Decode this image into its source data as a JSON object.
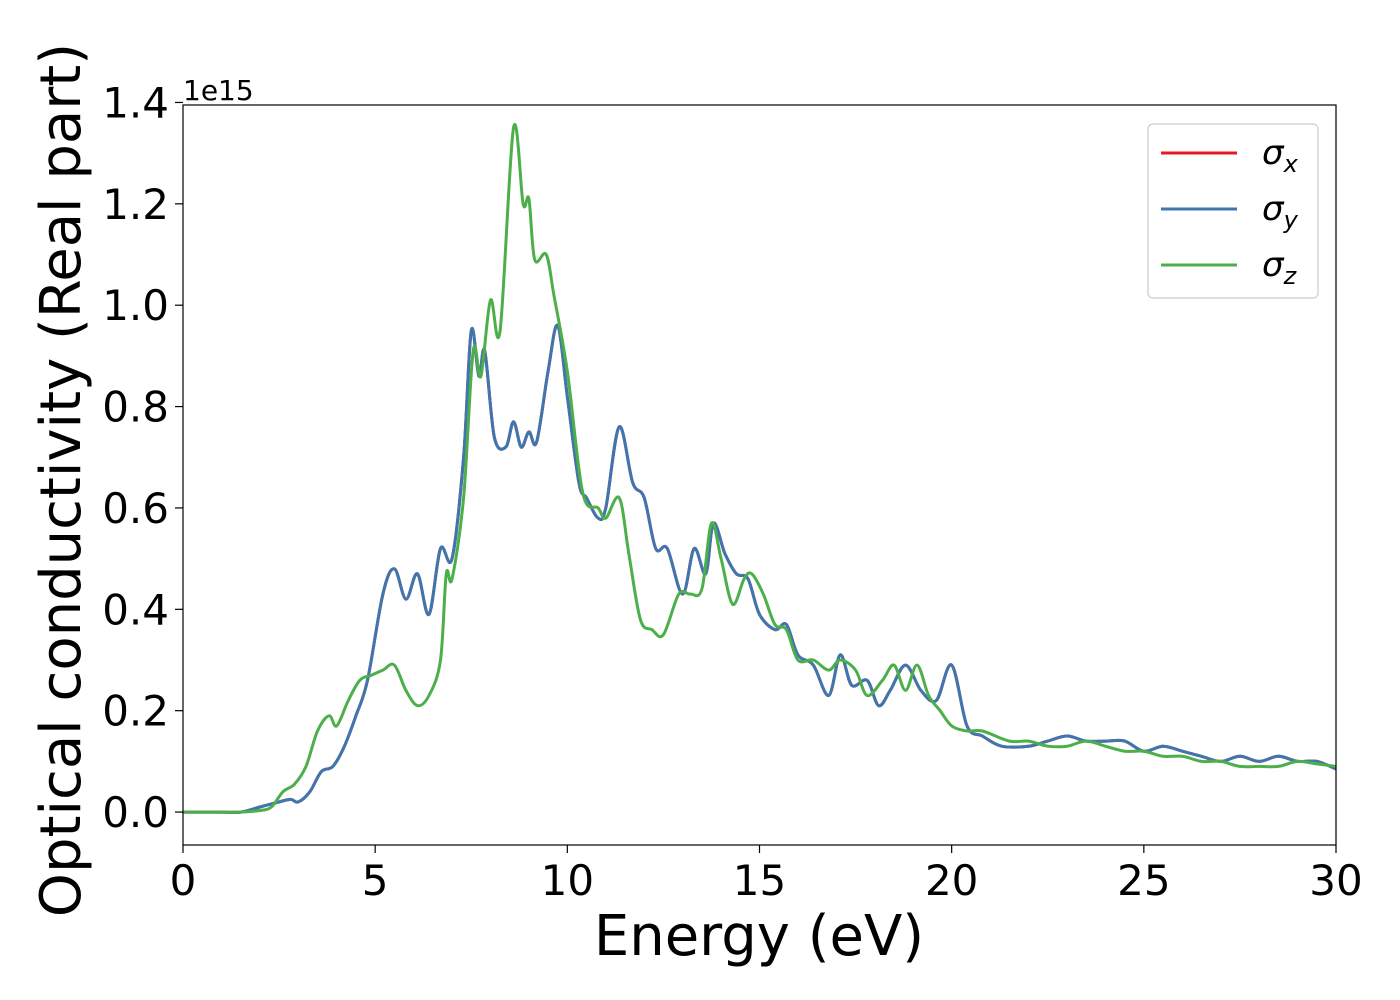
{
  "chart_data": {
    "type": "line",
    "title": "",
    "xlabel": "Energy (eV)",
    "ylabel": "Optical conductivity (Real part)",
    "y_offset_label": "1e15",
    "xlim": [
      0,
      30
    ],
    "ylim": [
      -0.065,
      1.395
    ],
    "x_ticks": [
      0,
      5,
      10,
      15,
      20,
      25,
      30
    ],
    "x_tick_labels": [
      "0",
      "5",
      "10",
      "15",
      "20",
      "25",
      "30"
    ],
    "y_ticks": [
      0.0,
      0.2,
      0.4,
      0.6,
      0.8,
      1.0,
      1.2,
      1.4
    ],
    "y_tick_labels": [
      "0.0",
      "0.2",
      "0.4",
      "0.6",
      "0.8",
      "1.0",
      "1.2",
      "1.4"
    ],
    "grid": false,
    "legend_position": "top-right",
    "series": [
      {
        "name": "σx",
        "name_base": "σ",
        "name_sub": "x",
        "color": "#e41a1c",
        "x": [
          0,
          1,
          1.5,
          2,
          2.5,
          2.8,
          3,
          3.3,
          3.6,
          3.9,
          4.2,
          4.5,
          4.8,
          5.2,
          5.5,
          5.8,
          6.1,
          6.4,
          6.7,
          7,
          7.3,
          7.5,
          7.7,
          7.85,
          8.1,
          8.4,
          8.6,
          8.8,
          9,
          9.2,
          9.5,
          9.75,
          10,
          10.3,
          10.5,
          10.8,
          11,
          11.35,
          11.7,
          12,
          12.3,
          12.6,
          13,
          13.3,
          13.6,
          13.8,
          14.1,
          14.4,
          14.7,
          15,
          15.4,
          15.7,
          16,
          16.4,
          16.8,
          17.1,
          17.4,
          17.8,
          18.1,
          18.4,
          18.8,
          19.2,
          19.6,
          20,
          20.4,
          20.8,
          21.3,
          22,
          22.5,
          23,
          23.5,
          24,
          24.5,
          25,
          25.5,
          26,
          26.5,
          27,
          27.5,
          28,
          28.5,
          29,
          29.5,
          30
        ],
        "values": [
          0,
          0,
          0,
          0.01,
          0.02,
          0.025,
          0.02,
          0.04,
          0.08,
          0.09,
          0.13,
          0.19,
          0.26,
          0.43,
          0.48,
          0.42,
          0.47,
          0.39,
          0.52,
          0.5,
          0.7,
          0.95,
          0.86,
          0.91,
          0.74,
          0.72,
          0.77,
          0.72,
          0.75,
          0.73,
          0.87,
          0.96,
          0.82,
          0.65,
          0.62,
          0.58,
          0.6,
          0.76,
          0.65,
          0.62,
          0.52,
          0.52,
          0.43,
          0.52,
          0.47,
          0.57,
          0.51,
          0.47,
          0.46,
          0.39,
          0.36,
          0.37,
          0.31,
          0.29,
          0.23,
          0.31,
          0.25,
          0.26,
          0.21,
          0.24,
          0.29,
          0.24,
          0.22,
          0.29,
          0.17,
          0.15,
          0.13,
          0.13,
          0.14,
          0.15,
          0.14,
          0.14,
          0.14,
          0.12,
          0.13,
          0.12,
          0.11,
          0.1,
          0.11,
          0.1,
          0.11,
          0.1,
          0.1,
          0.085
        ]
      },
      {
        "name": "σy",
        "name_base": "σ",
        "name_sub": "y",
        "color": "#3e77b0",
        "x": [
          0,
          1,
          1.5,
          2,
          2.5,
          2.8,
          3,
          3.3,
          3.6,
          3.9,
          4.2,
          4.5,
          4.8,
          5.2,
          5.5,
          5.8,
          6.1,
          6.4,
          6.7,
          7,
          7.3,
          7.5,
          7.7,
          7.85,
          8.1,
          8.4,
          8.6,
          8.8,
          9,
          9.2,
          9.5,
          9.75,
          10,
          10.3,
          10.5,
          10.8,
          11,
          11.35,
          11.7,
          12,
          12.3,
          12.6,
          13,
          13.3,
          13.6,
          13.8,
          14.1,
          14.4,
          14.7,
          15,
          15.4,
          15.7,
          16,
          16.4,
          16.8,
          17.1,
          17.4,
          17.8,
          18.1,
          18.4,
          18.8,
          19.2,
          19.6,
          20,
          20.4,
          20.8,
          21.3,
          22,
          22.5,
          23,
          23.5,
          24,
          24.5,
          25,
          25.5,
          26,
          26.5,
          27,
          27.5,
          28,
          28.5,
          29,
          29.5,
          30
        ],
        "values": [
          0,
          0,
          0,
          0.01,
          0.02,
          0.025,
          0.02,
          0.04,
          0.08,
          0.09,
          0.13,
          0.19,
          0.26,
          0.43,
          0.48,
          0.42,
          0.47,
          0.39,
          0.52,
          0.5,
          0.7,
          0.95,
          0.86,
          0.91,
          0.74,
          0.72,
          0.77,
          0.72,
          0.75,
          0.73,
          0.87,
          0.96,
          0.82,
          0.65,
          0.62,
          0.58,
          0.6,
          0.76,
          0.65,
          0.62,
          0.52,
          0.52,
          0.43,
          0.52,
          0.47,
          0.57,
          0.51,
          0.47,
          0.46,
          0.39,
          0.36,
          0.37,
          0.31,
          0.29,
          0.23,
          0.31,
          0.25,
          0.26,
          0.21,
          0.24,
          0.29,
          0.24,
          0.22,
          0.29,
          0.17,
          0.15,
          0.13,
          0.13,
          0.14,
          0.15,
          0.14,
          0.14,
          0.14,
          0.12,
          0.13,
          0.12,
          0.11,
          0.1,
          0.11,
          0.1,
          0.11,
          0.1,
          0.1,
          0.085
        ]
      },
      {
        "name": "σz",
        "name_base": "σ",
        "name_sub": "z",
        "color": "#4daf4a",
        "x": [
          0,
          1,
          1.5,
          2,
          2.3,
          2.6,
          2.9,
          3.2,
          3.5,
          3.8,
          4.0,
          4.3,
          4.6,
          4.9,
          5.2,
          5.5,
          5.8,
          6.1,
          6.4,
          6.7,
          6.85,
          7.0,
          7.3,
          7.55,
          7.75,
          8.0,
          8.25,
          8.6,
          8.85,
          9.0,
          9.15,
          9.45,
          9.65,
          10.0,
          10.4,
          10.8,
          11.0,
          11.35,
          11.6,
          11.9,
          12.2,
          12.5,
          12.9,
          13.2,
          13.5,
          13.75,
          14.0,
          14.3,
          14.6,
          14.8,
          15.1,
          15.4,
          15.7,
          16.0,
          16.4,
          16.8,
          17.1,
          17.5,
          17.8,
          18.2,
          18.5,
          18.8,
          19.1,
          19.4,
          19.7,
          20.0,
          20.4,
          20.8,
          21.5,
          22,
          22.5,
          23,
          23.5,
          24,
          24.5,
          25,
          25.5,
          26,
          26.5,
          27,
          27.5,
          28,
          28.5,
          29,
          29.5,
          30
        ],
        "values": [
          0,
          0,
          0,
          0.003,
          0.01,
          0.04,
          0.055,
          0.09,
          0.16,
          0.19,
          0.17,
          0.22,
          0.26,
          0.27,
          0.28,
          0.29,
          0.24,
          0.21,
          0.23,
          0.3,
          0.47,
          0.46,
          0.62,
          0.91,
          0.86,
          1.01,
          0.95,
          1.35,
          1.2,
          1.21,
          1.09,
          1.1,
          1.02,
          0.87,
          0.63,
          0.6,
          0.58,
          0.62,
          0.51,
          0.38,
          0.36,
          0.35,
          0.43,
          0.43,
          0.44,
          0.57,
          0.5,
          0.41,
          0.46,
          0.47,
          0.43,
          0.37,
          0.36,
          0.3,
          0.3,
          0.28,
          0.3,
          0.28,
          0.23,
          0.26,
          0.29,
          0.24,
          0.29,
          0.23,
          0.2,
          0.17,
          0.16,
          0.16,
          0.14,
          0.14,
          0.13,
          0.13,
          0.14,
          0.13,
          0.12,
          0.12,
          0.11,
          0.11,
          0.1,
          0.1,
          0.09,
          0.09,
          0.09,
          0.1,
          0.095,
          0.09
        ]
      }
    ]
  }
}
